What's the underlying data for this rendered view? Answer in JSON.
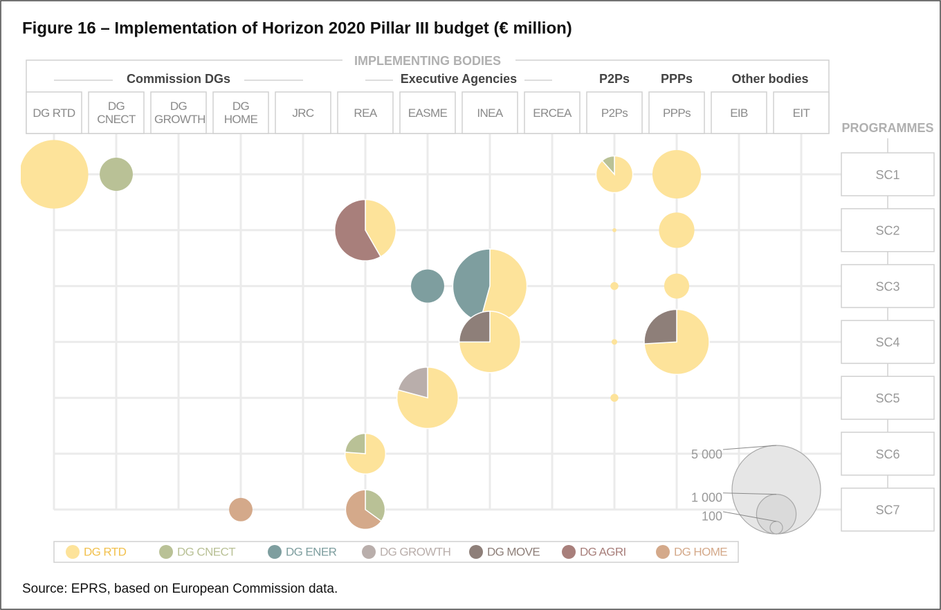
{
  "chart_data": {
    "type": "bubble-pie",
    "title": "Figure 16 – Implementation of Horizon 2020 Pillar III budget (€ million)",
    "header": "IMPLEMENTING BODIES",
    "row_header": "PROGRAMMES",
    "groups": [
      {
        "name": "Commission DGs",
        "columns": [
          "DG RTD",
          "DG CNECT",
          "DG GROWTH",
          "DG HOME",
          "JRC"
        ]
      },
      {
        "name": "Executive Agencies",
        "columns": [
          "REA",
          "EASME",
          "INEA",
          "ERCEA"
        ]
      },
      {
        "name": "P2Ps",
        "columns": [
          "P2Ps"
        ]
      },
      {
        "name": "PPPs",
        "columns": [
          "PPPs"
        ]
      },
      {
        "name": "Other bodies",
        "columns": [
          "EIB",
          "EIT"
        ]
      }
    ],
    "rows": [
      "SC1",
      "SC2",
      "SC3",
      "SC4",
      "SC5",
      "SC6",
      "SC7"
    ],
    "series": [
      {
        "name": "DG RTD",
        "color": "#fde39a"
      },
      {
        "name": "DG CNECT",
        "color": "#b9c196"
      },
      {
        "name": "DG ENER",
        "color": "#7e9e9f"
      },
      {
        "name": "DG GROWTH",
        "color": "#b9aeab"
      },
      {
        "name": "DG MOVE",
        "color": "#8e7f79"
      },
      {
        "name": "DG AGRI",
        "color": "#a87f7b"
      },
      {
        "name": "DG HOME",
        "color": "#d4a98a"
      }
    ],
    "bubbles": [
      {
        "column": "DG RTD",
        "row": "SC1",
        "series": [
          "DG RTD"
        ],
        "values": [
          3000
        ]
      },
      {
        "column": "DG CNECT",
        "row": "SC1",
        "series": [
          "DG CNECT"
        ],
        "values": [
          700
        ]
      },
      {
        "column": "P2Ps",
        "row": "SC1",
        "series": [
          "DG RTD",
          "DG CNECT"
        ],
        "values": [
          760,
          100
        ]
      },
      {
        "column": "PPPs",
        "row": "SC1",
        "series": [
          "DG RTD"
        ],
        "values": [
          1500
        ]
      },
      {
        "column": "REA",
        "row": "SC2",
        "series": [
          "DG RTD",
          "DG AGRI"
        ],
        "values": [
          1000,
          1400
        ]
      },
      {
        "column": "P2Ps",
        "row": "SC2",
        "series": [
          "DG RTD"
        ],
        "values": [
          10
        ]
      },
      {
        "column": "PPPs",
        "row": "SC2",
        "series": [
          "DG RTD"
        ],
        "values": [
          800
        ]
      },
      {
        "column": "EASME",
        "row": "SC3",
        "series": [
          "DG ENER"
        ],
        "values": [
          700
        ]
      },
      {
        "column": "INEA",
        "row": "SC3",
        "series": [
          "DG RTD",
          "DG ENER"
        ],
        "values": [
          1900,
          1600
        ]
      },
      {
        "column": "P2Ps",
        "row": "SC3",
        "series": [
          "DG RTD"
        ],
        "values": [
          40
        ]
      },
      {
        "column": "PPPs",
        "row": "SC3",
        "series": [
          "DG RTD"
        ],
        "values": [
          400
        ]
      },
      {
        "column": "INEA",
        "row": "SC4",
        "series": [
          "DG RTD",
          "DG MOVE"
        ],
        "values": [
          1800,
          600
        ]
      },
      {
        "column": "P2Ps",
        "row": "SC4",
        "series": [
          "DG RTD"
        ],
        "values": [
          20
        ]
      },
      {
        "column": "PPPs",
        "row": "SC4",
        "series": [
          "DG RTD",
          "DG MOVE"
        ],
        "values": [
          2000,
          700
        ]
      },
      {
        "column": "EASME",
        "row": "SC5",
        "series": [
          "DG RTD",
          "DG GROWTH"
        ],
        "values": [
          1900,
          500
        ]
      },
      {
        "column": "P2Ps",
        "row": "SC5",
        "series": [
          "DG RTD"
        ],
        "values": [
          40
        ]
      },
      {
        "column": "REA",
        "row": "SC6",
        "series": [
          "DG RTD",
          "DG CNECT"
        ],
        "values": [
          800,
          250
        ]
      },
      {
        "column": "DG HOME",
        "row": "SC7",
        "series": [
          "DG HOME"
        ],
        "values": [
          350
        ]
      },
      {
        "column": "REA",
        "row": "SC7",
        "series": [
          "DG CNECT",
          "DG HOME"
        ],
        "values": [
          350,
          650
        ]
      }
    ],
    "size_ticks": [
      {
        "value": 5000,
        "label": "5 000"
      },
      {
        "value": 1000,
        "label": "1 000"
      },
      100
    ],
    "source": "Source: EPRS, based on European Commission data."
  }
}
